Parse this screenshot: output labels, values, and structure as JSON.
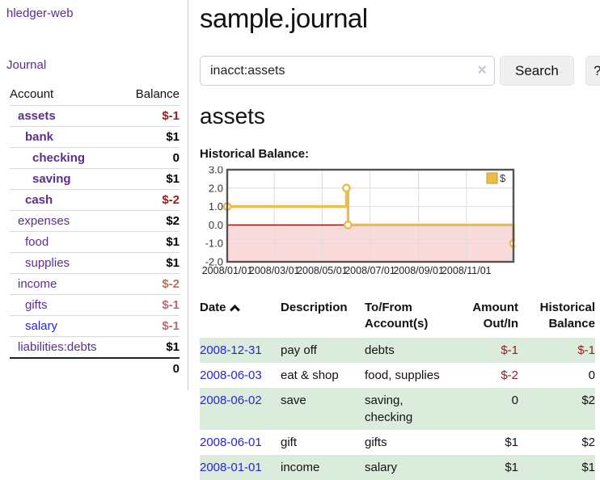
{
  "sidebar": {
    "brand": "hledger-web",
    "nav": {
      "journal": "Journal"
    },
    "accounts_table": {
      "col_account": "Account",
      "col_balance": "Balance",
      "rows": [
        {
          "name": "assets",
          "balance": "$-1",
          "depth": 1,
          "bold": true,
          "balance_style": "neg-strong"
        },
        {
          "name": "bank",
          "balance": "$1",
          "depth": 2,
          "bold": true,
          "balance_style": "pos"
        },
        {
          "name": "checking",
          "balance": "0",
          "depth": 3,
          "bold": true,
          "balance_style": "pos"
        },
        {
          "name": "saving",
          "balance": "$1",
          "depth": 3,
          "bold": true,
          "balance_style": "pos"
        },
        {
          "name": "cash",
          "balance": "$-2",
          "depth": 2,
          "bold": true,
          "balance_style": "neg-strong"
        },
        {
          "name": "expenses",
          "balance": "$2",
          "depth": 1,
          "bold": false,
          "balance_style": "pos"
        },
        {
          "name": "food",
          "balance": "$1",
          "depth": 2,
          "bold": false,
          "balance_style": "pos"
        },
        {
          "name": "supplies",
          "balance": "$1",
          "depth": 2,
          "bold": false,
          "balance_style": "pos"
        },
        {
          "name": "income",
          "balance": "$-2",
          "depth": 1,
          "bold": false,
          "balance_style": "neg-muted"
        },
        {
          "name": "gifts",
          "balance": "$-1",
          "depth": 2,
          "bold": false,
          "balance_style": "neg-muted"
        },
        {
          "name": "salary",
          "balance": "$-1",
          "depth": 2,
          "bold": false,
          "balance_style": "neg-muted",
          "blue": true
        },
        {
          "name": "liabilities:debts",
          "balance": "$1",
          "depth": 1,
          "bold": false,
          "balance_style": "pos"
        }
      ],
      "total": "0"
    }
  },
  "header": {
    "title": "sample.journal"
  },
  "search": {
    "value": "inacct:assets",
    "clear_icon": "×",
    "button_label": "Search",
    "help_label": "?"
  },
  "page": {
    "heading": "assets",
    "chart_label": "Historical Balance:"
  },
  "register": {
    "columns": [
      {
        "line1": "Date",
        "line2": "",
        "align": "left",
        "sortable": true
      },
      {
        "line1": "Description",
        "line2": "",
        "align": "left"
      },
      {
        "line1": "To/From",
        "line2": "Account(s)",
        "align": "left"
      },
      {
        "line1": "Amount",
        "line2": "Out/In",
        "align": "right"
      },
      {
        "line1": "Historical",
        "line2": "Balance",
        "align": "right"
      }
    ],
    "rows": [
      {
        "date": "2008-12-31",
        "description": "pay off",
        "to_from": "debts",
        "amount": "$-1",
        "amount_neg": true,
        "balance": "$-1",
        "balance_neg": true
      },
      {
        "date": "2008-06-03",
        "description": "eat & shop",
        "to_from": "food, supplies",
        "amount": "$-2",
        "amount_neg": true,
        "balance": "0",
        "balance_neg": false
      },
      {
        "date": "2008-06-02",
        "description": "save",
        "to_from": "saving,\nchecking",
        "amount": "0",
        "amount_neg": false,
        "balance": "$2",
        "balance_neg": false
      },
      {
        "date": "2008-06-01",
        "description": "gift",
        "to_from": "gifts",
        "amount": "$1",
        "amount_neg": false,
        "balance": "$2",
        "balance_neg": false
      },
      {
        "date": "2008-01-01",
        "description": "income",
        "to_from": "salary",
        "amount": "$1",
        "amount_neg": false,
        "balance": "$1",
        "balance_neg": false
      }
    ]
  },
  "chart_data": {
    "type": "line",
    "title": "Historical Balance:",
    "legend": "$",
    "legend_position": "top-right",
    "grid": true,
    "step": true,
    "ylim": [
      -2,
      3
    ],
    "y_ticks": [
      "3.0",
      "2.0",
      "1.0",
      "0.0",
      "-1.0",
      "-2.0"
    ],
    "y_tick_values": [
      3,
      2,
      1,
      0,
      -1,
      -2
    ],
    "x_ticks": [
      "2008/01/01",
      "2008/03/01",
      "2008/05/01",
      "2008/07/01",
      "2008/09/01",
      "2008/11/01"
    ],
    "x_tick_dates": [
      "2008-01-01",
      "2008-03-01",
      "2008-05-01",
      "2008-07-01",
      "2008-09-01",
      "2008-11-01"
    ],
    "x_range": [
      "2008-01-01",
      "2008-12-31"
    ],
    "series": [
      {
        "name": "$",
        "points": [
          [
            "2008-01-01",
            1
          ],
          [
            "2008-06-01",
            2
          ],
          [
            "2008-06-03",
            0
          ],
          [
            "2008-12-31",
            -1
          ]
        ]
      }
    ],
    "colors": {
      "line": "#e8bd4a",
      "marker_fill": "#ffffff",
      "negative_region_fill": "#fadbdb",
      "zero_line": "#990000",
      "grid": "#dddddd",
      "border": "#545454",
      "tick_text": "#333333"
    }
  }
}
